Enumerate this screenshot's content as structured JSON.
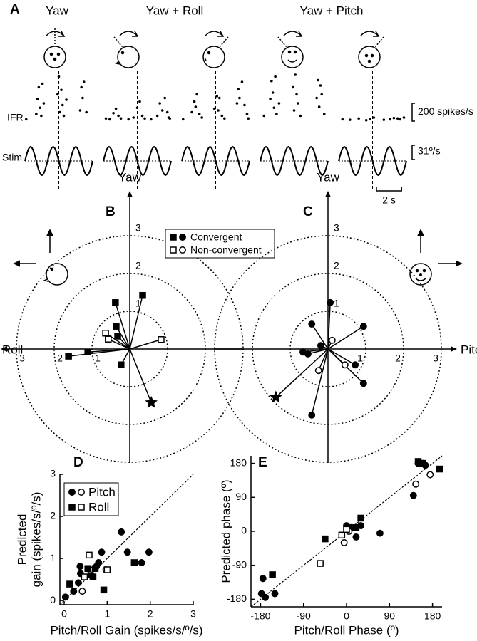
{
  "chart_data": [
    {
      "type": "raster",
      "label": "A",
      "titles": [
        "Yaw",
        "Yaw + Roll",
        "Yaw + Pitch"
      ],
      "row_labels": [
        "IFR",
        "Stim"
      ],
      "xlim": [
        0,
        5.4
      ],
      "ylim": [
        0,
        600
      ],
      "color": "#000",
      "scale_bars": [
        {
          "value": 200,
          "label": "200 spikes/s"
        },
        {
          "value": 31,
          "label": "31º/s"
        },
        {
          "value": 2,
          "label": "2 s"
        }
      ],
      "series": [
        {
          "x": [
            0.1,
            0.9,
            1.0,
            1.1,
            1.2,
            1.3,
            1.4,
            1.5,
            2.6,
            2.7,
            2.8,
            2.9,
            3.0,
            3.1,
            3.3,
            4.4,
            4.5,
            4.6,
            4.7,
            4.9
          ],
          "values": [
            20,
            80,
            250,
            380,
            150,
            60,
            420,
            200,
            300,
            500,
            100,
            350,
            180,
            60,
            240,
            120,
            380,
            260,
            440,
            100
          ]
        },
        {
          "x": [
            0.2,
            0.5,
            0.8,
            1.0,
            1.2,
            1.4,
            2.0,
            2.4,
            2.7,
            2.9,
            3.1,
            3.3,
            3.8,
            4.3,
            4.5,
            4.7,
            4.9,
            5.1,
            5.2,
            5.3
          ],
          "values": [
            30,
            20,
            90,
            140,
            60,
            30,
            20,
            40,
            150,
            220,
            60,
            30,
            20,
            60,
            200,
            120,
            260,
            100,
            40,
            30
          ]
        },
        {
          "x": [
            0.1,
            0.8,
            1.0,
            1.1,
            1.2,
            1.4,
            1.6,
            2.6,
            2.8,
            2.9,
            3.0,
            3.2,
            3.4,
            4.4,
            4.5,
            4.6,
            4.8,
            5.0,
            5.2,
            5.3
          ],
          "values": [
            20,
            100,
            220,
            160,
            300,
            80,
            40,
            140,
            280,
            120,
            260,
            60,
            30,
            200,
            360,
            260,
            440,
            180,
            80,
            30
          ]
        },
        {
          "x": [
            0.3,
            0.8,
            0.9,
            1.0,
            1.1,
            1.2,
            1.3,
            1.5,
            2.6,
            2.7,
            2.8,
            2.9,
            3.0,
            3.2,
            4.5,
            4.6,
            4.7,
            4.8,
            4.9,
            5.1
          ],
          "values": [
            60,
            250,
            450,
            320,
            150,
            500,
            80,
            200,
            380,
            120,
            520,
            300,
            200,
            60,
            260,
            460,
            160,
            400,
            300,
            80
          ]
        },
        {
          "x": [
            0.3,
            0.9,
            1.6,
            2.2,
            2.5,
            2.8,
            3.6,
            4.1,
            4.4,
            4.7,
            4.9,
            5.2
          ],
          "values": [
            20,
            15,
            30,
            10,
            25,
            40,
            15,
            20,
            35,
            30,
            20,
            40
          ]
        }
      ]
    },
    {
      "type": "polar",
      "label": "B",
      "vertical_label": "Yaw",
      "horizontal_label": "Roll",
      "x_direction": "left",
      "ring_ticks": [
        1,
        2,
        3
      ],
      "rlim": [
        0,
        3
      ],
      "marker": "square",
      "color": "#000",
      "series": [
        {
          "name": "Convergent",
          "filled": true,
          "star": 7,
          "x": [
            -0.34,
            0.38,
            0.36,
            0.32,
            1.11,
            1.62,
            0.23,
            -0.57
          ],
          "values": [
            1.42,
            1.23,
            0.6,
            0.34,
            -0.08,
            -0.19,
            -0.42,
            -1.42
          ]
        },
        {
          "name": "Non-convergent",
          "filled": false,
          "x": [
            0.64,
            0.57,
            -0.83
          ],
          "values": [
            0.42,
            0.26,
            0.25
          ]
        }
      ]
    },
    {
      "type": "polar",
      "label": "C",
      "vertical_label": "Yaw",
      "horizontal_label": "Pitch",
      "x_direction": "right",
      "ring_ticks": [
        1,
        2,
        3
      ],
      "rlim": [
        0,
        3
      ],
      "marker": "circle",
      "color": "#000",
      "series": [
        {
          "filled": true,
          "star": 9,
          "x": [
            0.06,
            -0.43,
            0.94,
            -0.19,
            -0.53,
            -0.66,
            0.72,
            0.94,
            -0.43,
            -1.38
          ],
          "values": [
            1.23,
            0.66,
            0.6,
            0.09,
            -0.13,
            -0.08,
            -0.42,
            -0.91,
            -1.75,
            -1.28
          ]
        },
        {
          "filled": false,
          "x": [
            0.11,
            0.45,
            -0.25
          ],
          "values": [
            0.23,
            -0.42,
            -0.57
          ]
        }
      ]
    },
    {
      "type": "scatter",
      "label": "D",
      "xlabel": "Pitch/Roll Gain (spikes/s/º/s)",
      "ylabel": [
        "Predicted",
        "gain (spikes/s/º/s)"
      ],
      "xlim": [
        -0.1,
        3
      ],
      "ylim": [
        -0.1,
        3
      ],
      "xticks": [
        0,
        1,
        2,
        3
      ],
      "yticks": [
        0,
        1,
        2,
        3
      ],
      "diagonal": true,
      "legend": "upper left",
      "color": "#000",
      "series": [
        {
          "name": "Pitch",
          "marker": "circle",
          "x": [
            0.03,
            0.22,
            0.33,
            0.37,
            0.38,
            0.63,
            0.75,
            0.8,
            0.87,
            1.33,
            1.47,
            1.8,
            1.97,
            0.42,
            0.97,
            0.6
          ],
          "values": [
            0.08,
            0.22,
            0.42,
            0.81,
            0.64,
            0.59,
            0.81,
            0.9,
            1.15,
            1.63,
            1.15,
            0.9,
            1.15,
            0.22,
            0.73,
            0.73
          ],
          "open": [
            false,
            false,
            false,
            false,
            false,
            false,
            false,
            false,
            false,
            false,
            false,
            false,
            false,
            true,
            true,
            true
          ]
        },
        {
          "name": "Roll",
          "marker": "square",
          "x": [
            0.13,
            0.55,
            0.67,
            0.92,
            1.63,
            0.72,
            0.58,
            0.47,
            1.0
          ],
          "values": [
            0.39,
            0.76,
            0.56,
            0.25,
            0.9,
            0.76,
            1.08,
            0.56,
            0.73
          ],
          "open": [
            false,
            false,
            false,
            false,
            false,
            false,
            true,
            true,
            true
          ]
        }
      ]
    },
    {
      "type": "scatter",
      "label": "E",
      "xlabel": "Pitch/Roll Phase  (º)",
      "ylabel": [
        "Predicted phase (º)"
      ],
      "xlim": [
        -200,
        200
      ],
      "ylim": [
        -200,
        200
      ],
      "xticks": [
        -180,
        -90,
        0,
        90,
        180
      ],
      "yticks": [
        -180,
        -90,
        0,
        90,
        180
      ],
      "diagonal": true,
      "color": "#000",
      "series": [
        {
          "marker": "circle",
          "x": [
            -175,
            -178,
            -170,
            -150,
            0,
            10,
            20,
            30,
            70,
            140,
            150,
            160,
            165,
            -5,
            5,
            145,
            175
          ],
          "values": [
            -125,
            -165,
            -175,
            -165,
            15,
            10,
            -15,
            15,
            -5,
            95,
            180,
            180,
            175,
            -30,
            0,
            125,
            150
          ],
          "open": [
            false,
            false,
            false,
            false,
            false,
            false,
            false,
            false,
            false,
            false,
            false,
            false,
            false,
            true,
            true,
            true,
            true
          ]
        },
        {
          "marker": "square",
          "x": [
            -155,
            -45,
            20,
            30,
            150,
            160,
            195,
            -55,
            -10,
            0
          ],
          "values": [
            -115,
            -20,
            10,
            35,
            185,
            180,
            165,
            -85,
            -10,
            5
          ],
          "open": [
            false,
            false,
            false,
            false,
            false,
            false,
            false,
            true,
            true,
            true
          ]
        }
      ]
    }
  ]
}
